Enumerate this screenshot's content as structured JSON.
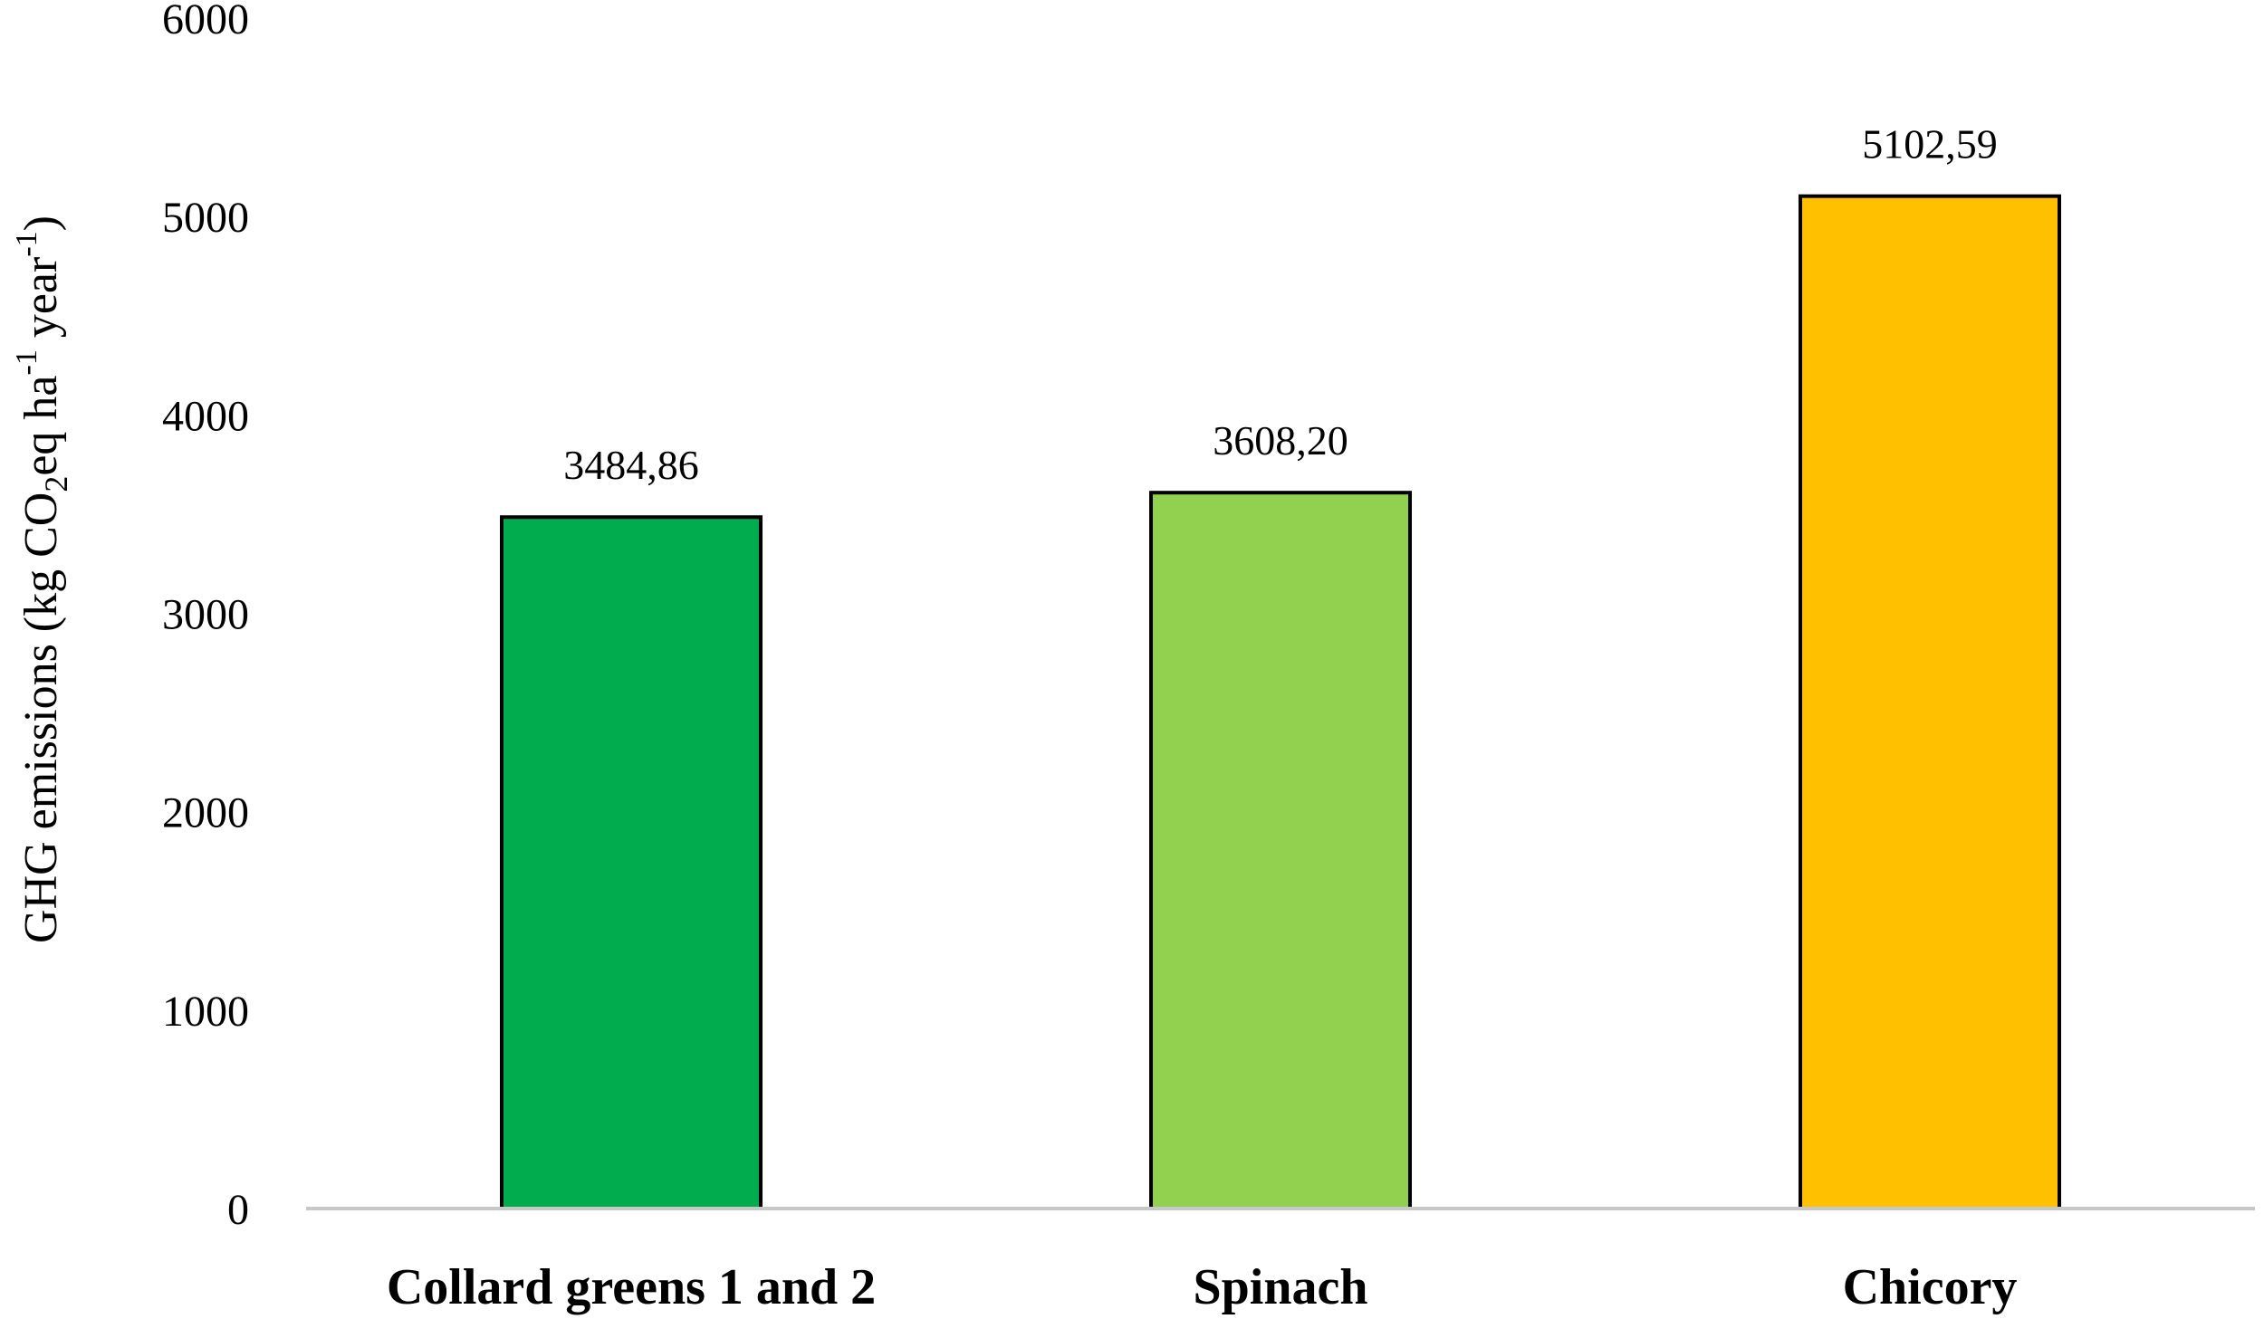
{
  "chart_data": {
    "type": "bar",
    "title": "",
    "xlabel": "",
    "ylabel": "GHG emissions (kg CO2eq ha-1 year-1)",
    "ylabel_parts": {
      "main": "GHG emissions (kg CO",
      "sub_2": "2",
      "eq_ha": "eq ha",
      "sup_1": "-1",
      "year": " year",
      "sup_2": "-1",
      "close": ")"
    },
    "categories": [
      "Collard greens 1 and 2",
      "Spinach",
      "Chicory"
    ],
    "values": [
      3484.86,
      3608.2,
      5102.59
    ],
    "value_labels": [
      "3484,86",
      "3608,20",
      "5102,59"
    ],
    "colors": [
      "#00AC4E",
      "#92D050",
      "#FFC000"
    ],
    "ylim": [
      0,
      6000
    ],
    "yticks": [
      0,
      1000,
      2000,
      3000,
      4000,
      5000,
      6000
    ],
    "ytick_labels": [
      "0",
      "1000",
      "2000",
      "3000",
      "4000",
      "5000",
      "6000"
    ],
    "grid": false,
    "legend": "none"
  }
}
